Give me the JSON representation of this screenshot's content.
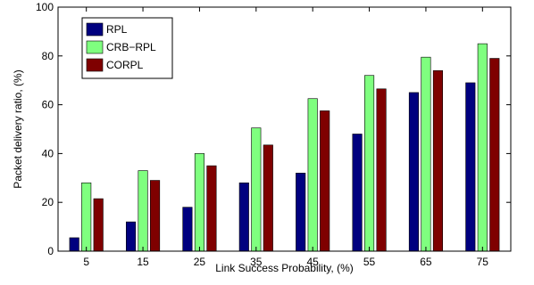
{
  "chart_data": {
    "type": "bar",
    "title": "",
    "xlabel": "Link Success Probability, (%)",
    "ylabel": "Packet delivery ratio, (%)",
    "categories": [
      "5",
      "15",
      "25",
      "35",
      "45",
      "55",
      "65",
      "75"
    ],
    "ylim": [
      0,
      100
    ],
    "yticks": [
      0,
      20,
      40,
      60,
      80,
      100
    ],
    "grid": false,
    "legend_position": "top-left",
    "series": [
      {
        "name": "RPL",
        "color": "#00007f",
        "values": [
          5.5,
          12,
          18,
          28,
          32,
          48,
          65,
          69
        ]
      },
      {
        "name": "CRB−RPL",
        "color": "#7fff7f",
        "values": [
          28,
          33,
          40,
          50.5,
          62.5,
          72,
          79.5,
          85
        ]
      },
      {
        "name": "CORPL",
        "color": "#7f0000",
        "values": [
          21.5,
          29,
          35,
          43.5,
          57.5,
          66.5,
          74,
          79
        ]
      }
    ]
  }
}
